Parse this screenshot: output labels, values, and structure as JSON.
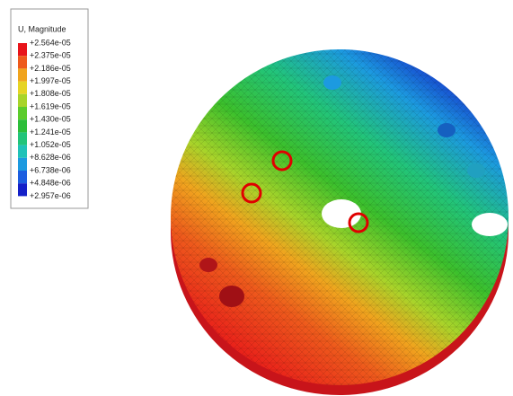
{
  "legend": {
    "title": "U, Magnitude",
    "labels": [
      "+2.564e-05",
      "+2.375e-05",
      "+2.186e-05",
      "+1.997e-05",
      "+1.808e-05",
      "+1.619e-05",
      "+1.430e-05",
      "+1.241e-05",
      "+1.052e-05",
      "+8.628e-06",
      "+6.738e-06",
      "+4.848e-06",
      "+2.957e-06"
    ],
    "colors": [
      "#e8141a",
      "#ee5a1c",
      "#f0a41e",
      "#e6d424",
      "#a8d42a",
      "#5ccc2c",
      "#2cbe3a",
      "#22c47a",
      "#20c2b8",
      "#1c9ae0",
      "#1c5ee0",
      "#1420c8"
    ]
  }
}
